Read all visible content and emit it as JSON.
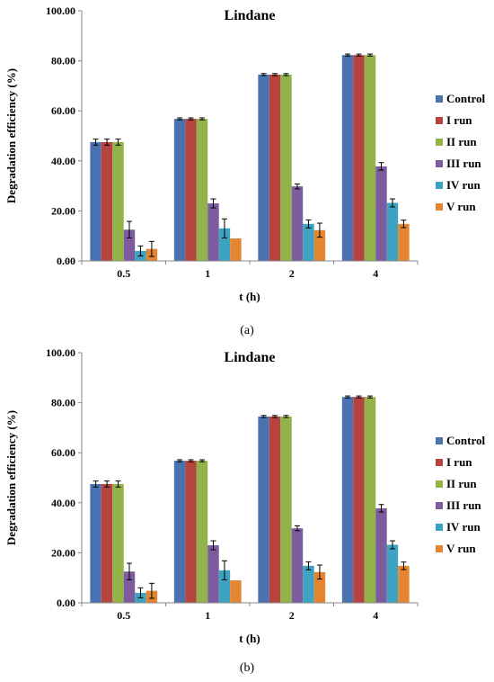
{
  "chart_data": [
    {
      "type": "bar",
      "title": "Lindane",
      "caption": "(a)",
      "xlabel": "t (h)",
      "ylabel": "Degradation efficiency (%)",
      "categories": [
        "0.5",
        "1",
        "2",
        "4"
      ],
      "ylim": [
        0,
        100
      ],
      "yticks": [
        "0.00",
        "20.00",
        "40.00",
        "60.00",
        "80.00",
        "100.00"
      ],
      "grid": false,
      "legend_position": "right",
      "series": [
        {
          "name": "Control",
          "color": "#4a72b0",
          "values": [
            47.5,
            56.8,
            74.5,
            82.3
          ],
          "errors": [
            1.2,
            0.4,
            0.4,
            0.4
          ]
        },
        {
          "name": "I run",
          "color": "#b5443f",
          "values": [
            47.5,
            56.8,
            74.5,
            82.3
          ],
          "errors": [
            1.2,
            0.4,
            0.4,
            0.4
          ]
        },
        {
          "name": "II run",
          "color": "#92b24a",
          "values": [
            47.5,
            56.8,
            74.5,
            82.3
          ],
          "errors": [
            1.2,
            0.4,
            0.4,
            0.4
          ]
        },
        {
          "name": "III run",
          "color": "#7c5b9f",
          "values": [
            12.5,
            23.0,
            29.8,
            37.8
          ],
          "errors": [
            3.3,
            1.8,
            1.0,
            1.5
          ]
        },
        {
          "name": "IV run",
          "color": "#3da3c0",
          "values": [
            4.0,
            13.0,
            14.8,
            23.2
          ],
          "errors": [
            2.0,
            3.8,
            1.6,
            1.6
          ]
        },
        {
          "name": "V run",
          "color": "#e48532",
          "values": [
            4.8,
            9.0,
            12.3,
            14.8
          ],
          "errors": [
            3.0,
            0,
            2.8,
            1.5
          ]
        }
      ]
    },
    {
      "type": "bar",
      "title": "Lindane",
      "caption": "(b)",
      "xlabel": "t (h)",
      "ylabel": "Degradation efficiency (%)",
      "categories": [
        "0.5",
        "1",
        "2",
        "4"
      ],
      "ylim": [
        0,
        100
      ],
      "yticks": [
        "0.00",
        "20.00",
        "40.00",
        "60.00",
        "80.00",
        "100.00"
      ],
      "grid": false,
      "legend_position": "right",
      "series": [
        {
          "name": "Control",
          "color": "#4a72b0",
          "values": [
            47.5,
            56.8,
            74.5,
            82.3
          ],
          "errors": [
            1.2,
            0.4,
            0.4,
            0.4
          ]
        },
        {
          "name": "I run",
          "color": "#b5443f",
          "values": [
            47.5,
            56.8,
            74.5,
            82.3
          ],
          "errors": [
            1.2,
            0.4,
            0.4,
            0.4
          ]
        },
        {
          "name": "II run",
          "color": "#92b24a",
          "values": [
            47.5,
            56.8,
            74.5,
            82.3
          ],
          "errors": [
            1.2,
            0.4,
            0.4,
            0.4
          ]
        },
        {
          "name": "III run",
          "color": "#7c5b9f",
          "values": [
            12.5,
            23.0,
            29.8,
            37.8
          ],
          "errors": [
            3.3,
            1.8,
            1.0,
            1.5
          ]
        },
        {
          "name": "IV run",
          "color": "#3da3c0",
          "values": [
            4.0,
            13.0,
            14.8,
            23.2
          ],
          "errors": [
            2.0,
            3.8,
            1.6,
            1.6
          ]
        },
        {
          "name": "V run",
          "color": "#e48532",
          "values": [
            4.8,
            9.0,
            12.3,
            14.8
          ],
          "errors": [
            3.0,
            0,
            2.8,
            1.5
          ]
        }
      ]
    }
  ]
}
